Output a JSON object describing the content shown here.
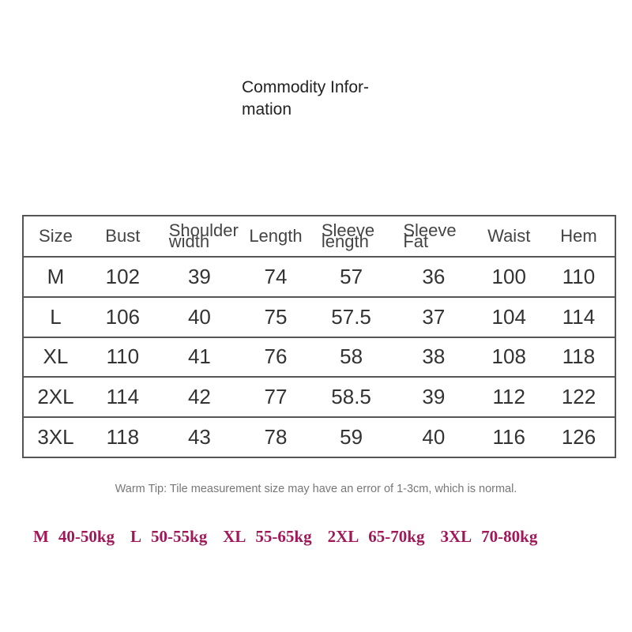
{
  "title": [
    "Commodity Infor-",
    "mation"
  ],
  "table": {
    "headers": [
      "Size",
      "Bust",
      [
        "Shoulder",
        "width"
      ],
      "Length",
      [
        "Sleeve",
        "length"
      ],
      [
        "Sleeve",
        "Fat"
      ],
      "Waist",
      "Hem"
    ],
    "rows": [
      [
        "M",
        "102",
        "39",
        "74",
        "57",
        "36",
        "100",
        "110"
      ],
      [
        "L",
        "106",
        "40",
        "75",
        "57.5",
        "37",
        "104",
        "114"
      ],
      [
        "XL",
        "110",
        "41",
        "76",
        "58",
        "38",
        "108",
        "118"
      ],
      [
        "2XL",
        "114",
        "42",
        "77",
        "58.5",
        "39",
        "112",
        "122"
      ],
      [
        "3XL",
        "118",
        "43",
        "78",
        "59",
        "40",
        "116",
        "126"
      ]
    ]
  },
  "tip": "Warm Tip: Tile measurement size may have an error of 1-3cm, which is normal.",
  "weights": [
    [
      "M",
      "40-50kg"
    ],
    [
      "L",
      "50-55kg"
    ],
    [
      "XL",
      "55-65kg"
    ],
    [
      "2XL",
      "65-70kg"
    ],
    [
      "3XL",
      "70-80kg"
    ]
  ]
}
